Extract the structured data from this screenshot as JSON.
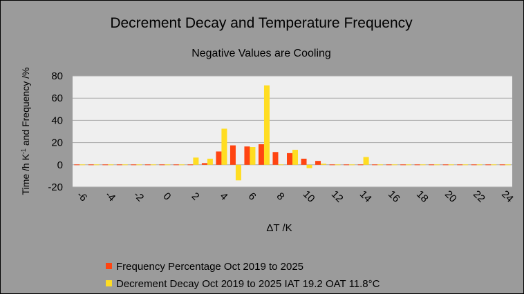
{
  "chart_data": {
    "type": "bar",
    "title": "Decrement Decay and Temperature Frequency",
    "subtitle": "Negative Values are Cooling",
    "xlabel": "ΔT /K",
    "ylabel_main": "Time /h K",
    "ylabel_sup": "-1",
    "ylabel_rest": " and Frequency /%",
    "ylim": [
      -20,
      80
    ],
    "yticks": [
      -20,
      0,
      20,
      40,
      60,
      80
    ],
    "xlim": [
      -6,
      24
    ],
    "xticks": [
      -6,
      -4,
      -2,
      0,
      2,
      4,
      6,
      8,
      10,
      12,
      14,
      16,
      18,
      20,
      22,
      24
    ],
    "grid": true,
    "legend_position": "bottom-left",
    "x": [
      -6,
      -5,
      -4,
      -3,
      -2,
      -1,
      0,
      1,
      2,
      3,
      4,
      5,
      6,
      7,
      8,
      9,
      10,
      11,
      12,
      13,
      14,
      15,
      16,
      17,
      18,
      19,
      20,
      21,
      22,
      23,
      24
    ],
    "series": [
      {
        "name": "Frequency Percentage Oct 2019 to 2025",
        "color": "#ff4411",
        "values": [
          0,
          0,
          0,
          0,
          0,
          0,
          0,
          0,
          0,
          1.5,
          12,
          17.5,
          16.5,
          18.5,
          11.5,
          10.5,
          5.5,
          3.5,
          0.5,
          0,
          0,
          0,
          0,
          0,
          0,
          0,
          0,
          0,
          0,
          0,
          0
        ]
      },
      {
        "name": "Decrement Decay Oct 2019 to 2025 IAT 19.2 OAT 11.8°C",
        "color": "#ffdd22",
        "values": [
          0,
          0,
          0,
          0,
          0,
          0,
          0,
          0,
          6.5,
          5.5,
          32.5,
          -14,
          16,
          71.5,
          0,
          13.5,
          -3,
          1,
          0,
          0,
          7,
          0,
          0,
          0,
          0,
          0,
          0,
          0,
          0,
          0,
          0
        ]
      }
    ]
  }
}
